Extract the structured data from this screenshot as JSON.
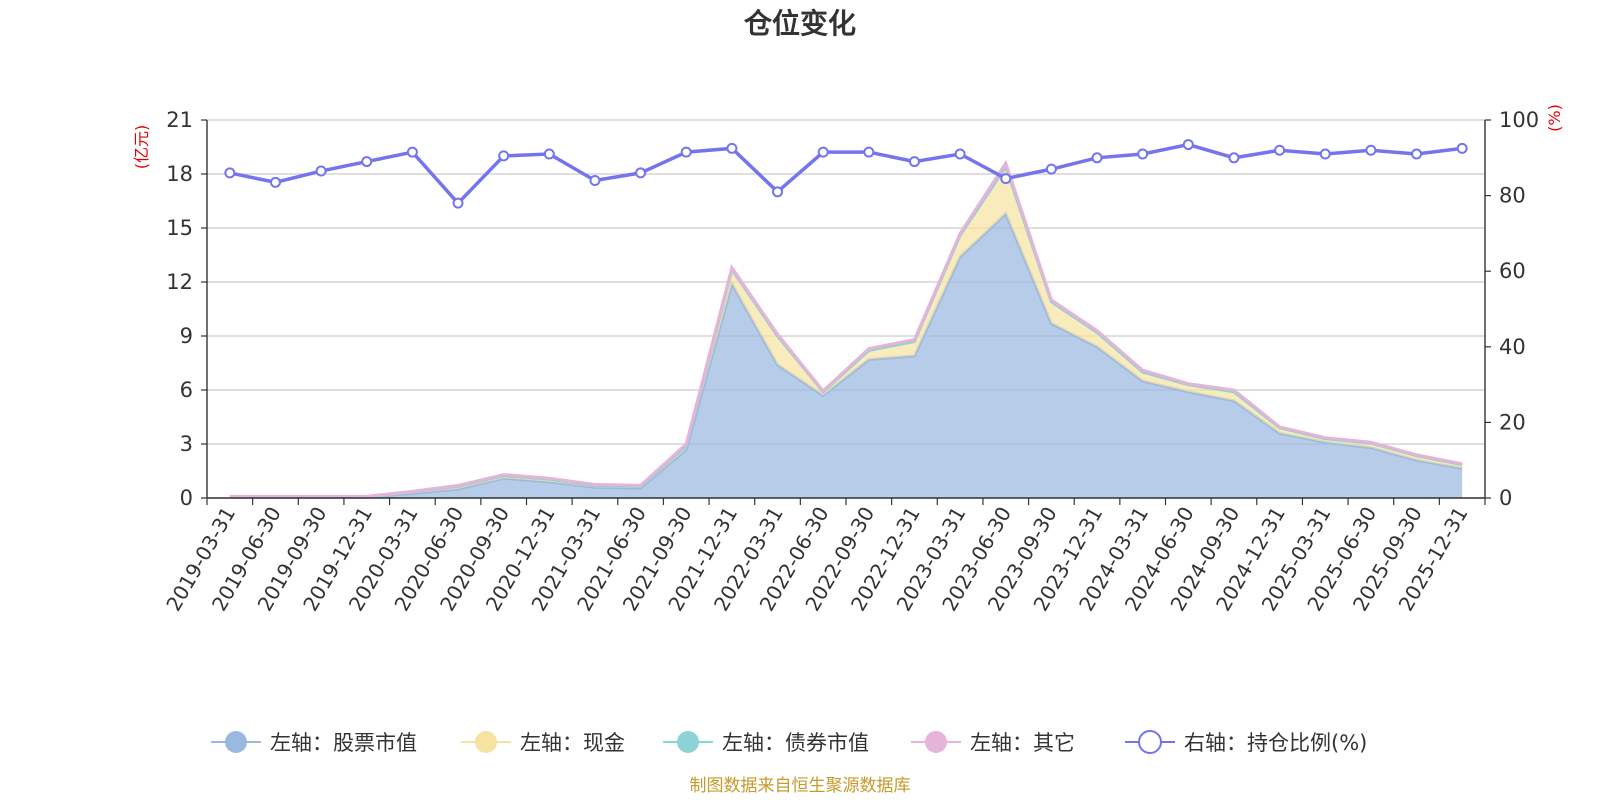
{
  "chart_data": {
    "type": "area",
    "title": "仓位变化",
    "left_axis_unit": "(亿元)",
    "right_axis_unit": "(%)",
    "left_ylim": [
      0,
      21
    ],
    "left_ticks": [
      "0",
      "3",
      "6",
      "9",
      "12",
      "15",
      "18",
      "21"
    ],
    "right_ylim": [
      0,
      100
    ],
    "right_ticks": [
      "0",
      "20",
      "40",
      "60",
      "80",
      "100"
    ],
    "categories": [
      "2019-03-31",
      "2019-06-30",
      "2019-09-30",
      "2019-12-31",
      "2020-03-31",
      "2020-06-30",
      "2020-09-30",
      "2020-12-31",
      "2021-03-31",
      "2021-06-30",
      "2021-09-30",
      "2021-12-31",
      "2022-03-31",
      "2022-06-30",
      "2022-09-30",
      "2022-12-31",
      "2023-03-31",
      "2023-06-30",
      "2023-09-30",
      "2023-12-31",
      "2024-03-31",
      "2024-06-30",
      "2024-09-30",
      "2024-12-31",
      "2025-03-31",
      "2025-06-30",
      "2025-09-30",
      "2025-12-31"
    ],
    "series": [
      {
        "name": "左轴：股票市值",
        "axis": "left",
        "color": "#9bb8e0",
        "values": [
          0.05,
          0.05,
          0.05,
          0.05,
          0.25,
          0.5,
          1.1,
          0.9,
          0.6,
          0.55,
          2.7,
          11.9,
          7.4,
          5.7,
          7.7,
          7.9,
          13.4,
          15.8,
          9.7,
          8.4,
          6.5,
          5.9,
          5.4,
          3.6,
          3.1,
          2.8,
          2.1,
          1.65
        ]
      },
      {
        "name": "左轴：现金",
        "axis": "left",
        "color": "#f6e3a1",
        "values": [
          0.02,
          0.02,
          0.02,
          0.02,
          0.1,
          0.15,
          0.15,
          0.15,
          0.1,
          0.1,
          0.2,
          0.8,
          1.6,
          0.2,
          0.5,
          0.8,
          1.2,
          2.6,
          1.2,
          0.8,
          0.5,
          0.4,
          0.5,
          0.3,
          0.2,
          0.25,
          0.25,
          0.2
        ]
      },
      {
        "name": "左轴：债券市值",
        "axis": "left",
        "color": "#8dd3d6",
        "values": [
          0,
          0,
          0,
          0,
          0,
          0,
          0,
          0,
          0,
          0,
          0,
          0,
          0,
          0,
          0,
          0,
          0,
          0,
          0,
          0,
          0,
          0,
          0,
          0,
          0,
          0,
          0,
          0
        ]
      },
      {
        "name": "左轴：其它",
        "axis": "left",
        "color": "#e6b3d9",
        "values": [
          0.02,
          0.02,
          0.02,
          0.02,
          0.02,
          0.05,
          0.05,
          0.05,
          0.05,
          0.05,
          0.1,
          0.1,
          0.1,
          0.05,
          0.1,
          0.1,
          0.1,
          0.2,
          0.1,
          0.1,
          0.1,
          0.05,
          0.1,
          0.05,
          0.05,
          0.05,
          0.05,
          0.05
        ]
      },
      {
        "name": "右轴：持仓比例(%)",
        "axis": "right",
        "color": "#7474ee",
        "values": [
          86,
          83.5,
          86.5,
          89,
          91.5,
          78,
          90.5,
          91,
          84,
          86,
          91.5,
          92.5,
          81,
          91.5,
          91.5,
          89,
          91,
          84.5,
          87,
          90,
          91,
          93.5,
          90,
          92,
          91,
          92,
          91,
          92.5
        ]
      }
    ]
  },
  "source_note": "制图数据来自恒生聚源数据库"
}
